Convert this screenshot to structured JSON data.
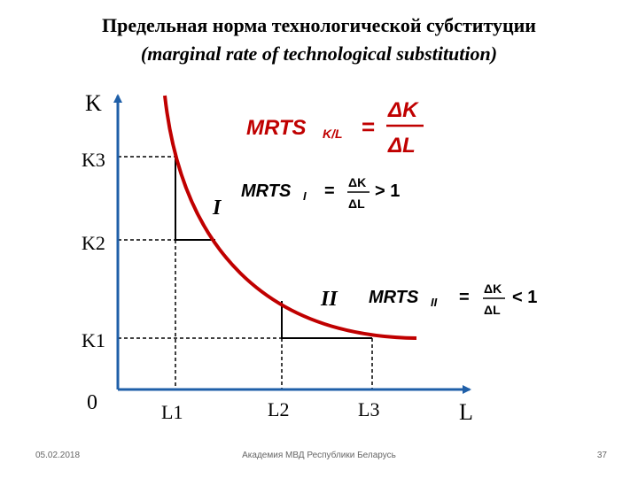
{
  "title": {
    "line1": "Предельная норма технологической субституции",
    "line2": "(marginal rate of technological substitution)"
  },
  "axes": {
    "y_label": "K",
    "x_label": "L",
    "origin": "0",
    "y_ticks": [
      "K3",
      "K2",
      "K1"
    ],
    "x_ticks": [
      "L1",
      "L2",
      "L3"
    ]
  },
  "segments": {
    "first": "I",
    "second": "II"
  },
  "formulas": {
    "main": {
      "lhs": "MRTS",
      "sub": "K/L",
      "eq": "=",
      "num": "ΔK",
      "den": "ΔL"
    },
    "first": {
      "lhs": "MRTS",
      "sub": "I",
      "eq": "=",
      "num": "ΔK",
      "den": "ΔL",
      "rel": "> 1"
    },
    "second": {
      "lhs": "MRTS",
      "sub": "II",
      "eq": "=",
      "num": "ΔK",
      "den": "ΔL",
      "rel": "< 1"
    }
  },
  "colors": {
    "curve": "#c00000",
    "axis": "#1f5fa8",
    "formula": "#c00000"
  },
  "footer": {
    "date": "05.02.2018",
    "org": "Академия МВД Республики Беларусь",
    "page": "37"
  }
}
